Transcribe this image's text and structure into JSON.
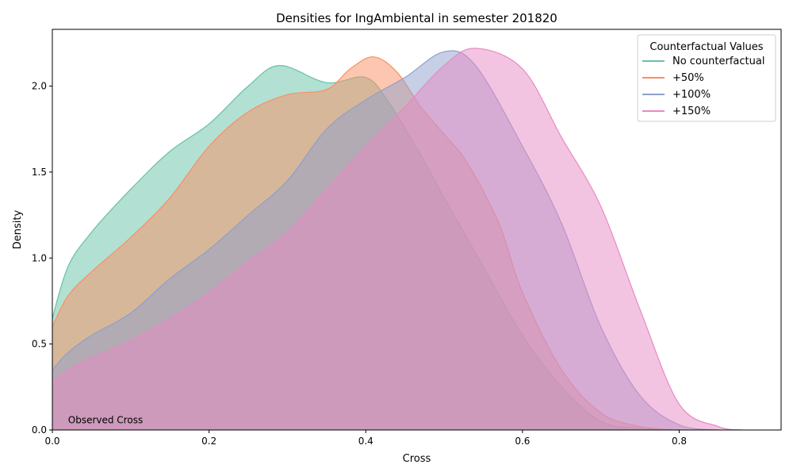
{
  "chart_data": {
    "type": "area",
    "title": "Densities for IngAmbiental in semester 201820",
    "xlabel": "Cross",
    "ylabel": "Density",
    "xlim": [
      0,
      0.93
    ],
    "ylim": [
      0,
      2.33
    ],
    "x_ticks": [
      "0.0",
      "0.2",
      "0.4",
      "0.6",
      "0.8"
    ],
    "y_ticks": [
      "0.0",
      "0.5",
      "1.0",
      "1.5",
      "2.0"
    ],
    "grid": false,
    "legend": {
      "title": "Counterfactual Values",
      "position": "top-right"
    },
    "annotation": {
      "text": "Observed Cross",
      "x": 0.02,
      "y": 0.02,
      "color": "#ff0000"
    },
    "series": [
      {
        "name": "No counterfactual",
        "color": "#66c2a5",
        "x": [
          0.0,
          0.02,
          0.05,
          0.1,
          0.15,
          0.2,
          0.25,
          0.29,
          0.35,
          0.4,
          0.43,
          0.47,
          0.5,
          0.55,
          0.6,
          0.65,
          0.7,
          0.75,
          0.8
        ],
        "y": [
          0.65,
          0.95,
          1.15,
          1.4,
          1.62,
          1.78,
          2.0,
          2.12,
          2.02,
          2.05,
          1.9,
          1.6,
          1.35,
          0.95,
          0.55,
          0.25,
          0.05,
          0.01,
          0.0
        ]
      },
      {
        "name": "+50%",
        "color": "#fc8d62",
        "x": [
          0.0,
          0.02,
          0.05,
          0.1,
          0.15,
          0.2,
          0.25,
          0.3,
          0.35,
          0.38,
          0.41,
          0.44,
          0.47,
          0.5,
          0.53,
          0.57,
          0.6,
          0.65,
          0.7,
          0.75,
          0.8
        ],
        "y": [
          0.6,
          0.78,
          0.92,
          1.12,
          1.35,
          1.65,
          1.85,
          1.95,
          1.98,
          2.1,
          2.17,
          2.08,
          1.88,
          1.72,
          1.55,
          1.2,
          0.8,
          0.35,
          0.1,
          0.02,
          0.0
        ]
      },
      {
        "name": "+100%",
        "color": "#8da0cb",
        "x": [
          0.0,
          0.02,
          0.05,
          0.1,
          0.15,
          0.2,
          0.25,
          0.3,
          0.35,
          0.4,
          0.45,
          0.5,
          0.54,
          0.6,
          0.65,
          0.7,
          0.75,
          0.8,
          0.85
        ],
        "y": [
          0.35,
          0.45,
          0.55,
          0.68,
          0.88,
          1.05,
          1.25,
          1.45,
          1.75,
          1.92,
          2.05,
          2.2,
          2.12,
          1.65,
          1.2,
          0.6,
          0.2,
          0.03,
          0.0
        ]
      },
      {
        "name": "+150%",
        "color": "#e78ac3",
        "x": [
          0.0,
          0.02,
          0.05,
          0.1,
          0.15,
          0.2,
          0.25,
          0.3,
          0.35,
          0.4,
          0.45,
          0.5,
          0.54,
          0.6,
          0.65,
          0.7,
          0.75,
          0.8,
          0.85,
          0.88
        ],
        "y": [
          0.28,
          0.35,
          0.42,
          0.52,
          0.65,
          0.8,
          0.98,
          1.15,
          1.4,
          1.65,
          1.88,
          2.12,
          2.22,
          2.1,
          1.7,
          1.3,
          0.7,
          0.15,
          0.02,
          0.0
        ]
      }
    ]
  }
}
